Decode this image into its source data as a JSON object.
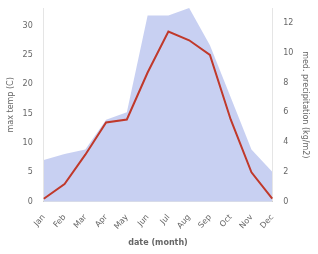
{
  "chart_data": {
    "type": "line",
    "categories": [
      "Jan",
      "Feb",
      "Mar",
      "Apr",
      "May",
      "Jun",
      "Jul",
      "Aug",
      "Sep",
      "Oct",
      "Nov",
      "Dec"
    ],
    "xlabel": "date (month)",
    "ylabel": "max temp (C)",
    "y2label": "med. precipitation (kg/m2)",
    "ylim": [
      0,
      33
    ],
    "yticks": [
      0,
      5,
      10,
      15,
      20,
      25,
      30
    ],
    "y2lim": [
      0,
      13
    ],
    "y2ticks": [
      0,
      2,
      4,
      6,
      8,
      10,
      12
    ],
    "grid": false,
    "series": [
      {
        "type": "area",
        "color": "#bec8f0",
        "axis": "y2",
        "values": [
          2.8,
          3.2,
          3.5,
          5.5,
          6.0,
          12.5,
          12.5,
          13.0,
          10.5,
          7.0,
          3.5,
          2.0
        ]
      },
      {
        "type": "line",
        "color": "#c0392b",
        "values": [
          0.5,
          3.0,
          8.0,
          13.5,
          14.0,
          22.0,
          29.0,
          27.5,
          25.0,
          14.0,
          5.0,
          0.5
        ]
      }
    ]
  }
}
